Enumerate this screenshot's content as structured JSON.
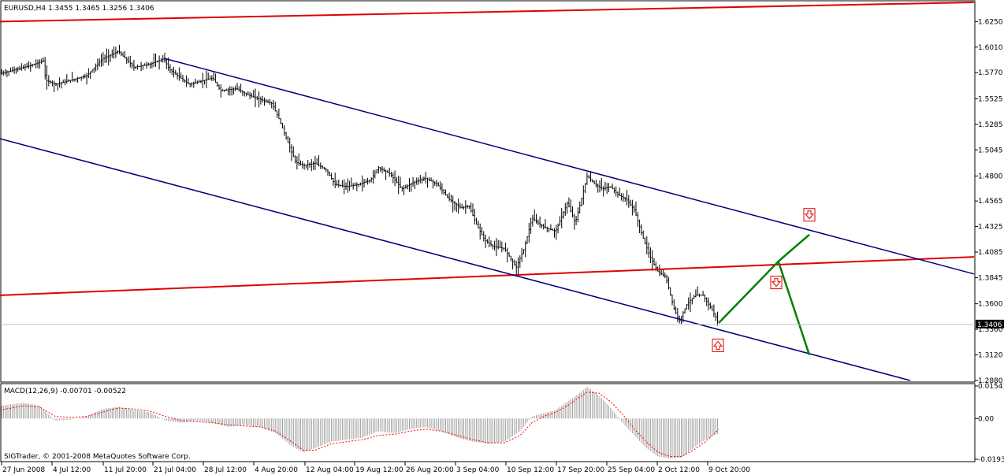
{
  "chart_data": [
    {
      "type": "ohlc",
      "title": "EURUSD,H4  1.3455 1.3465 1.3256 1.3406",
      "price_ticks": [
        "1.6250",
        "1.6010",
        "1.5770",
        "1.5525",
        "1.5285",
        "1.5045",
        "1.4800",
        "1.4565",
        "1.4325",
        "1.4085",
        "1.3845",
        "1.3600",
        "1.3360",
        "1.3120",
        "1.2880"
      ],
      "ylim": [
        1.288,
        1.643
      ],
      "current_price": "1.3406",
      "x_ticks": [
        "27 Jun 2008",
        "4 Jul 12:00",
        "11 Jul 20:00",
        "21 Jul 04:00",
        "28 Jul 12:00",
        "4 Aug 20:00",
        "12 Aug 04:00",
        "19 Aug 12:00",
        "26 Aug 20:00",
        "3 Sep 04:00",
        "10 Sep 12:00",
        "17 Sep 20:00",
        "25 Sep 04:00",
        "2 Oct 12:00",
        "9 Oct 20:00"
      ],
      "price_path": [
        [
          0,
          1.576
        ],
        [
          20,
          1.58
        ],
        [
          40,
          1.584
        ],
        [
          55,
          1.588
        ],
        [
          58,
          1.57
        ],
        [
          70,
          1.566
        ],
        [
          90,
          1.57
        ],
        [
          110,
          1.574
        ],
        [
          130,
          1.59
        ],
        [
          150,
          1.597
        ],
        [
          170,
          1.582
        ],
        [
          190,
          1.585
        ],
        [
          208,
          1.59
        ],
        [
          215,
          1.58
        ],
        [
          240,
          1.566
        ],
        [
          260,
          1.57
        ],
        [
          270,
          1.572
        ],
        [
          280,
          1.56
        ],
        [
          300,
          1.562
        ],
        [
          315,
          1.556
        ],
        [
          330,
          1.552
        ],
        [
          345,
          1.548
        ],
        [
          355,
          1.532
        ],
        [
          365,
          1.512
        ],
        [
          375,
          1.493
        ],
        [
          385,
          1.49
        ],
        [
          400,
          1.492
        ],
        [
          415,
          1.485
        ],
        [
          425,
          1.472
        ],
        [
          440,
          1.47
        ],
        [
          455,
          1.472
        ],
        [
          470,
          1.476
        ],
        [
          480,
          1.488
        ],
        [
          495,
          1.482
        ],
        [
          510,
          1.468
        ],
        [
          525,
          1.474
        ],
        [
          540,
          1.478
        ],
        [
          555,
          1.472
        ],
        [
          570,
          1.458
        ],
        [
          585,
          1.45
        ],
        [
          595,
          1.452
        ],
        [
          605,
          1.434
        ],
        [
          615,
          1.42
        ],
        [
          625,
          1.414
        ],
        [
          640,
          1.412
        ],
        [
          655,
          1.394
        ],
        [
          665,
          1.412
        ],
        [
          675,
          1.44
        ],
        [
          690,
          1.432
        ],
        [
          705,
          1.428
        ],
        [
          720,
          1.455
        ],
        [
          730,
          1.436
        ],
        [
          740,
          1.465
        ],
        [
          745,
          1.48
        ],
        [
          755,
          1.472
        ],
        [
          765,
          1.468
        ],
        [
          775,
          1.47
        ],
        [
          785,
          1.462
        ],
        [
          795,
          1.458
        ],
        [
          805,
          1.448
        ],
        [
          815,
          1.424
        ],
        [
          825,
          1.404
        ],
        [
          835,
          1.39
        ],
        [
          845,
          1.385
        ],
        [
          855,
          1.356
        ],
        [
          862,
          1.344
        ],
        [
          872,
          1.36
        ],
        [
          882,
          1.368
        ],
        [
          892,
          1.368
        ],
        [
          902,
          1.356
        ],
        [
          911,
          1.344
        ]
      ],
      "annotations": {
        "red_lines": [
          [
            [
              0,
              1.625
            ],
            [
              1236,
              1.643
            ]
          ],
          [
            [
              0,
              1.368
            ],
            [
              1236,
              1.404
            ]
          ]
        ],
        "blue_lines": [
          [
            [
              208,
              1.5905
            ],
            [
              1236,
              1.388
            ]
          ],
          [
            [
              0,
              1.515
            ],
            [
              1155,
              1.288
            ]
          ]
        ],
        "green_path": [
          [
            912,
            1.342
          ],
          [
            988,
            1.4
          ],
          [
            1027,
            1.425
          ]
        ],
        "green_path2": [
          [
            988,
            1.399
          ],
          [
            1027,
            1.312
          ]
        ],
        "arrows": [
          {
            "dir": "down",
            "x": 1027,
            "y": 1.4435
          },
          {
            "dir": "down",
            "x": 985,
            "y": 1.38
          },
          {
            "dir": "up",
            "x": 911,
            "y": 1.321
          }
        ]
      }
    },
    {
      "type": "histogram",
      "title": "MACD(12,26,9) -0.00701 -0.00522",
      "ticks": [
        "0.01541",
        "0.00",
        "-0.01931"
      ],
      "ylim": [
        -0.01931,
        0.01541
      ],
      "macd_knots": [
        [
          0,
          0.006
        ],
        [
          30,
          0.0075
        ],
        [
          50,
          0.006
        ],
        [
          70,
          -0.001
        ],
        [
          90,
          -0.0005
        ],
        [
          110,
          0.001
        ],
        [
          130,
          0.0045
        ],
        [
          150,
          0.0055
        ],
        [
          170,
          0.004
        ],
        [
          190,
          0.003
        ],
        [
          210,
          -0.001
        ],
        [
          230,
          -0.002
        ],
        [
          250,
          -0.001
        ],
        [
          270,
          -0.002
        ],
        [
          290,
          -0.004
        ],
        [
          310,
          -0.003
        ],
        [
          330,
          -0.004
        ],
        [
          350,
          -0.007
        ],
        [
          370,
          -0.013
        ],
        [
          385,
          -0.016
        ],
        [
          400,
          -0.014
        ],
        [
          420,
          -0.011
        ],
        [
          440,
          -0.01
        ],
        [
          460,
          -0.009
        ],
        [
          480,
          -0.006
        ],
        [
          500,
          -0.007
        ],
        [
          520,
          -0.005
        ],
        [
          540,
          -0.004
        ],
        [
          560,
          -0.006
        ],
        [
          580,
          -0.009
        ],
        [
          600,
          -0.011
        ],
        [
          620,
          -0.012
        ],
        [
          640,
          -0.011
        ],
        [
          660,
          -0.006
        ],
        [
          675,
          0.001
        ],
        [
          690,
          0.0025
        ],
        [
          705,
          0.004
        ],
        [
          720,
          0.008
        ],
        [
          735,
          0.012
        ],
        [
          745,
          0.015
        ],
        [
          760,
          0.011
        ],
        [
          775,
          0.005
        ],
        [
          790,
          -0.002
        ],
        [
          805,
          -0.008
        ],
        [
          820,
          -0.014
        ],
        [
          835,
          -0.018
        ],
        [
          850,
          -0.019
        ],
        [
          865,
          -0.0185
        ],
        [
          880,
          -0.014
        ],
        [
          895,
          -0.01
        ],
        [
          912,
          -0.007
        ]
      ],
      "signal_knots": [
        [
          0,
          0.004
        ],
        [
          30,
          0.006
        ],
        [
          50,
          0.0055
        ],
        [
          70,
          0.001
        ],
        [
          90,
          0.0005
        ],
        [
          110,
          0.001
        ],
        [
          130,
          0.003
        ],
        [
          150,
          0.005
        ],
        [
          170,
          0.0045
        ],
        [
          190,
          0.0035
        ],
        [
          210,
          0.001
        ],
        [
          230,
          -0.001
        ],
        [
          250,
          -0.0015
        ],
        [
          270,
          -0.002
        ],
        [
          290,
          -0.003
        ],
        [
          310,
          -0.0035
        ],
        [
          330,
          -0.004
        ],
        [
          350,
          -0.006
        ],
        [
          370,
          -0.011
        ],
        [
          385,
          -0.015
        ],
        [
          400,
          -0.015
        ],
        [
          420,
          -0.012
        ],
        [
          440,
          -0.011
        ],
        [
          460,
          -0.01
        ],
        [
          480,
          -0.008
        ],
        [
          500,
          -0.0075
        ],
        [
          520,
          -0.006
        ],
        [
          540,
          -0.005
        ],
        [
          560,
          -0.006
        ],
        [
          580,
          -0.008
        ],
        [
          600,
          -0.01
        ],
        [
          620,
          -0.0115
        ],
        [
          640,
          -0.0115
        ],
        [
          660,
          -0.008
        ],
        [
          675,
          -0.002
        ],
        [
          690,
          0.001
        ],
        [
          705,
          0.003
        ],
        [
          720,
          0.006
        ],
        [
          735,
          0.01
        ],
        [
          745,
          0.0125
        ],
        [
          760,
          0.012
        ],
        [
          775,
          0.008
        ],
        [
          790,
          0.002
        ],
        [
          805,
          -0.005
        ],
        [
          820,
          -0.011
        ],
        [
          835,
          -0.016
        ],
        [
          850,
          -0.018
        ],
        [
          865,
          -0.018
        ],
        [
          880,
          -0.015
        ],
        [
          895,
          -0.011
        ],
        [
          912,
          -0.0052
        ]
      ]
    }
  ],
  "copyright": "SIGTrader, © 2001-2008 MetaQuotes Software Corp.",
  "colors": {
    "bars": "#000000",
    "red": "#e00000",
    "blue": "#000080",
    "green": "#008000",
    "macd_hist": "#a0a0a0",
    "macd_signal": "#ff0000"
  }
}
